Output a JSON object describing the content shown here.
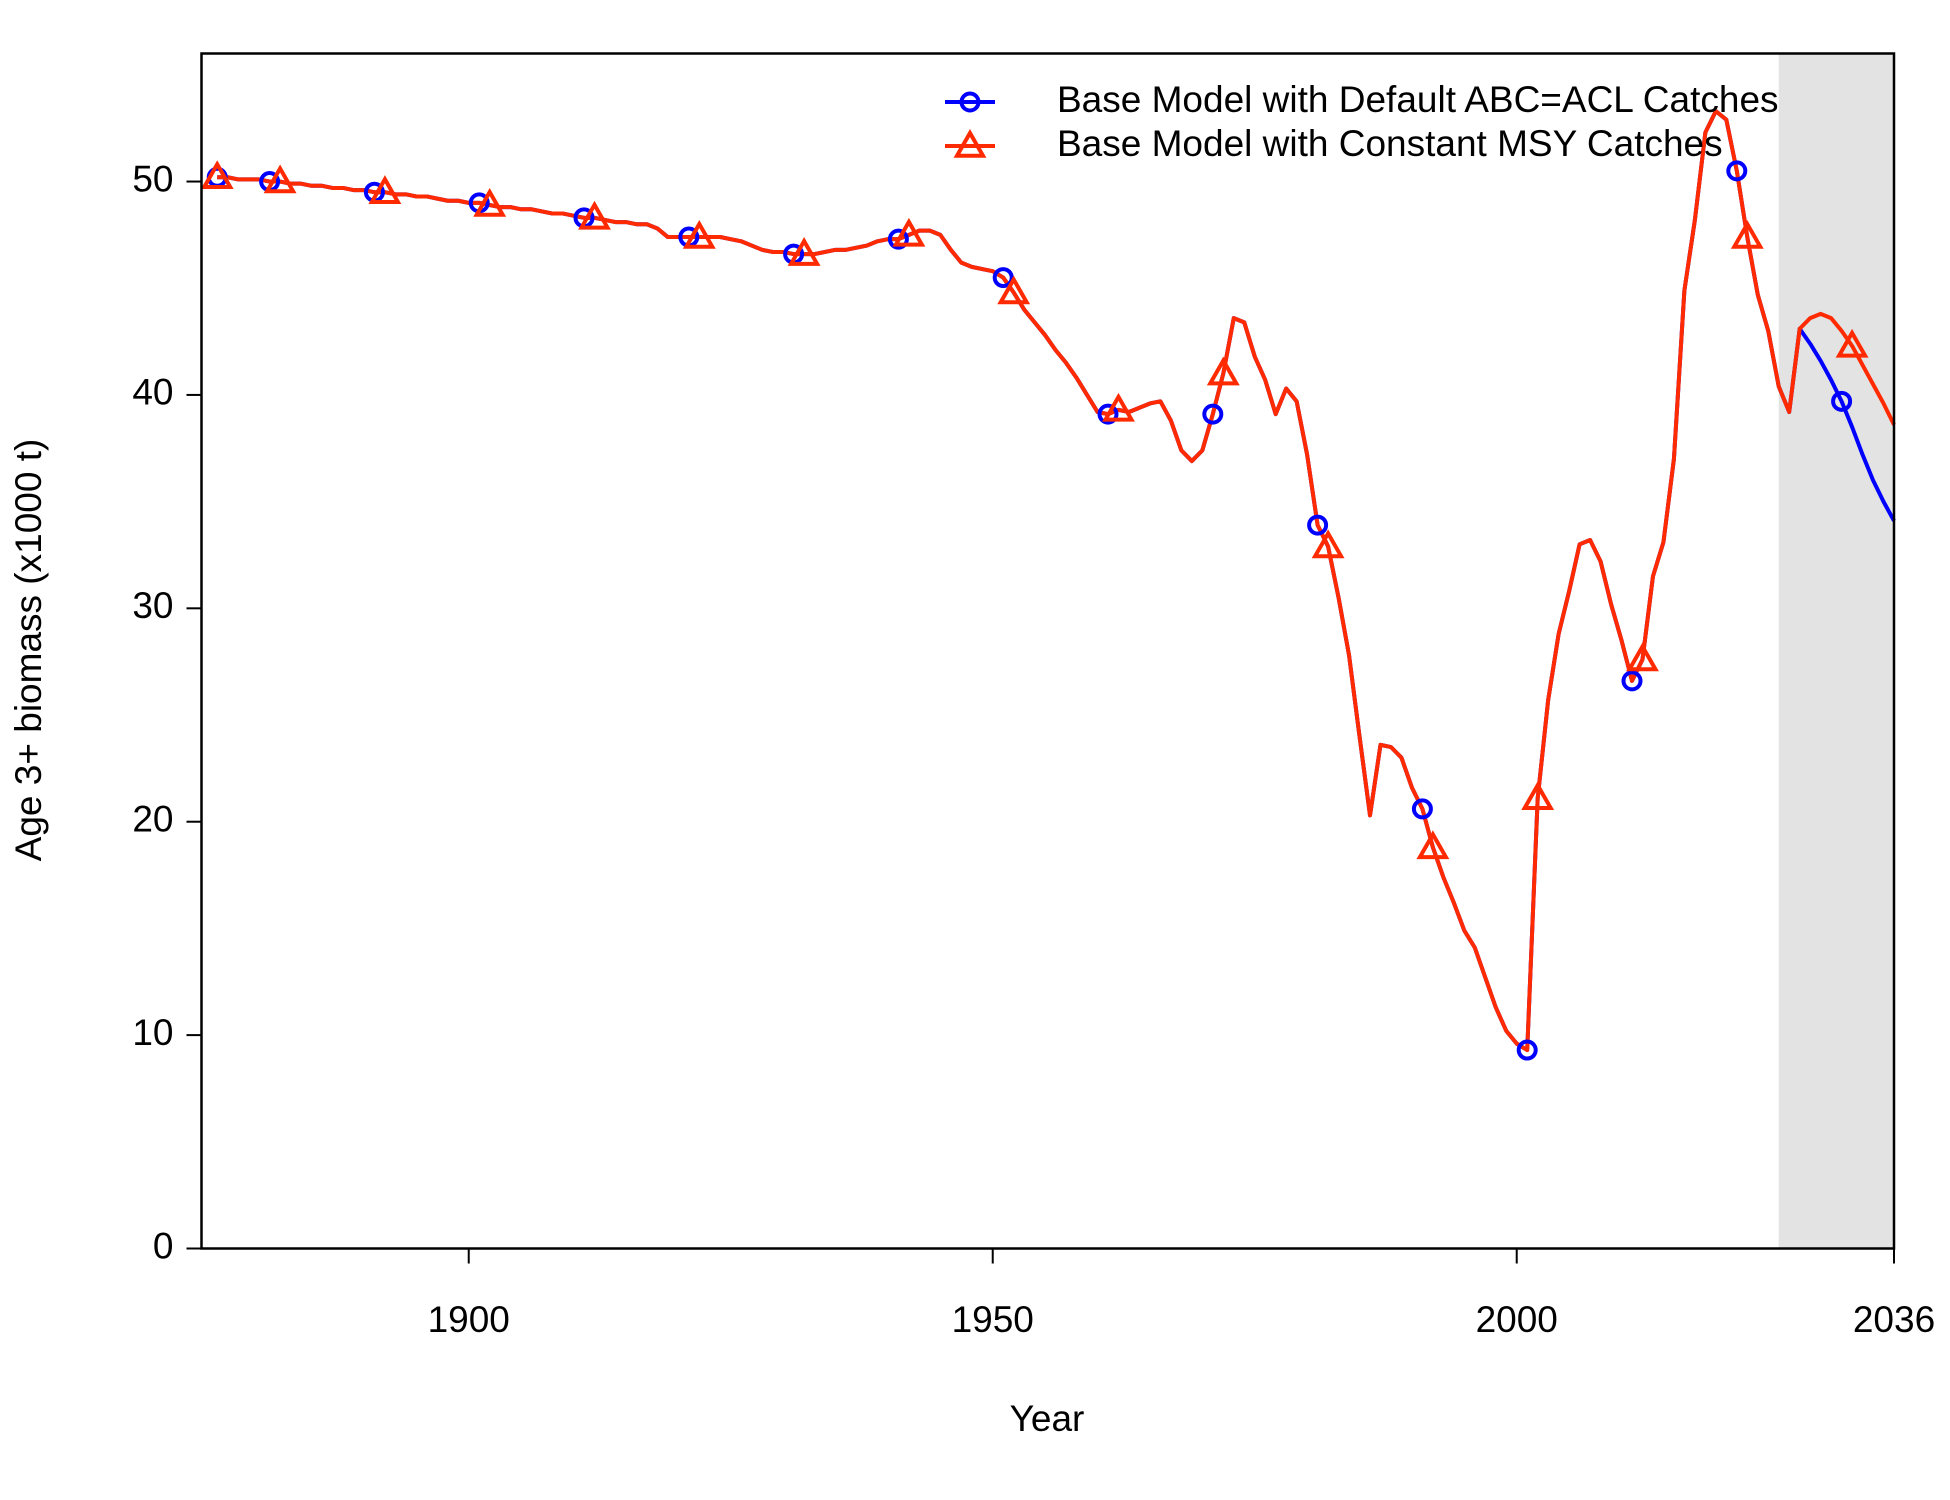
{
  "chart_data": {
    "type": "line",
    "xlabel": "Year",
    "ylabel": "Age 3+ biomass (x1000 t)",
    "x": [
      1876,
      1877,
      1878,
      1879,
      1880,
      1881,
      1882,
      1883,
      1884,
      1885,
      1886,
      1887,
      1888,
      1889,
      1890,
      1891,
      1892,
      1893,
      1894,
      1895,
      1896,
      1897,
      1898,
      1899,
      1900,
      1901,
      1902,
      1903,
      1904,
      1905,
      1906,
      1907,
      1908,
      1909,
      1910,
      1911,
      1912,
      1913,
      1914,
      1915,
      1916,
      1917,
      1918,
      1919,
      1920,
      1921,
      1922,
      1923,
      1924,
      1925,
      1926,
      1927,
      1928,
      1929,
      1930,
      1931,
      1932,
      1933,
      1934,
      1935,
      1936,
      1937,
      1938,
      1939,
      1940,
      1941,
      1942,
      1943,
      1944,
      1945,
      1946,
      1947,
      1948,
      1949,
      1950,
      1951,
      1952,
      1953,
      1954,
      1955,
      1956,
      1957,
      1958,
      1959,
      1960,
      1961,
      1962,
      1963,
      1964,
      1965,
      1966,
      1967,
      1968,
      1969,
      1970,
      1971,
      1972,
      1973,
      1974,
      1975,
      1976,
      1977,
      1978,
      1979,
      1980,
      1981,
      1982,
      1983,
      1984,
      1985,
      1986,
      1987,
      1988,
      1989,
      1990,
      1991,
      1992,
      1993,
      1994,
      1995,
      1996,
      1997,
      1998,
      1999,
      2000,
      2001,
      2002,
      2003,
      2004,
      2005,
      2006,
      2007,
      2008,
      2009,
      2010,
      2011,
      2012,
      2013,
      2014,
      2015,
      2016,
      2017,
      2018,
      2019,
      2020,
      2021,
      2022,
      2023,
      2024,
      2025,
      2026,
      2027,
      2028,
      2029,
      2030,
      2031,
      2032,
      2033,
      2034,
      2035,
      2036
    ],
    "series": [
      {
        "name": "Base Model with Default ABC=ACL Catches",
        "color": "#0000ff",
        "marker": "circle",
        "values": [
          50.2,
          50.2,
          50.1,
          50.1,
          50.1,
          50.0,
          50.0,
          49.9,
          49.9,
          49.8,
          49.8,
          49.7,
          49.7,
          49.6,
          49.6,
          49.5,
          49.5,
          49.4,
          49.4,
          49.3,
          49.3,
          49.2,
          49.1,
          49.1,
          49.0,
          49.0,
          48.9,
          48.8,
          48.8,
          48.7,
          48.7,
          48.6,
          48.5,
          48.5,
          48.4,
          48.3,
          48.3,
          48.2,
          48.1,
          48.1,
          48.0,
          48.0,
          47.8,
          47.4,
          47.4,
          47.4,
          47.4,
          47.4,
          47.4,
          47.3,
          47.2,
          47.0,
          46.8,
          46.7,
          46.7,
          46.6,
          46.6,
          46.6,
          46.7,
          46.8,
          46.8,
          46.9,
          47.0,
          47.2,
          47.3,
          47.3,
          47.5,
          47.7,
          47.7,
          47.5,
          46.8,
          46.2,
          46.0,
          45.9,
          45.8,
          45.5,
          44.8,
          44.0,
          43.4,
          42.8,
          42.1,
          41.5,
          40.8,
          40.0,
          39.2,
          39.1,
          39.3,
          39.2,
          39.4,
          39.6,
          39.7,
          38.8,
          37.4,
          36.9,
          37.4,
          39.1,
          41.0,
          43.6,
          43.4,
          41.8,
          40.7,
          39.1,
          40.3,
          39.7,
          37.2,
          33.9,
          32.9,
          30.5,
          27.8,
          24.0,
          20.3,
          23.6,
          23.5,
          23.0,
          21.6,
          20.6,
          18.8,
          17.4,
          16.2,
          14.9,
          14.1,
          12.7,
          11.3,
          10.2,
          9.6,
          9.3,
          21.1,
          25.7,
          28.8,
          30.8,
          33.0,
          33.2,
          32.2,
          30.2,
          28.5,
          26.6,
          27.6,
          31.5,
          33.1,
          37.0,
          44.9,
          48.2,
          52.3,
          53.3,
          52.9,
          50.5,
          47.4,
          44.7,
          43.0,
          40.4,
          39.2,
          43.1,
          42.4,
          41.6,
          40.7,
          39.7,
          38.5,
          37.2,
          36.0,
          35.0,
          34.1
        ]
      },
      {
        "name": "Base Model with Constant MSY Catches",
        "color": "#ff2a00",
        "marker": "triangle",
        "values": [
          50.2,
          50.2,
          50.1,
          50.1,
          50.1,
          50.0,
          50.0,
          49.9,
          49.9,
          49.8,
          49.8,
          49.7,
          49.7,
          49.6,
          49.6,
          49.5,
          49.5,
          49.4,
          49.4,
          49.3,
          49.3,
          49.2,
          49.1,
          49.1,
          49.0,
          49.0,
          48.9,
          48.8,
          48.8,
          48.7,
          48.7,
          48.6,
          48.5,
          48.5,
          48.4,
          48.3,
          48.3,
          48.2,
          48.1,
          48.1,
          48.0,
          48.0,
          47.8,
          47.4,
          47.4,
          47.4,
          47.4,
          47.4,
          47.4,
          47.3,
          47.2,
          47.0,
          46.8,
          46.7,
          46.7,
          46.6,
          46.6,
          46.6,
          46.7,
          46.8,
          46.8,
          46.9,
          47.0,
          47.2,
          47.3,
          47.3,
          47.5,
          47.7,
          47.7,
          47.5,
          46.8,
          46.2,
          46.0,
          45.9,
          45.8,
          45.5,
          44.8,
          44.0,
          43.4,
          42.8,
          42.1,
          41.5,
          40.8,
          40.0,
          39.2,
          39.1,
          39.3,
          39.2,
          39.4,
          39.6,
          39.7,
          38.8,
          37.4,
          36.9,
          37.4,
          39.1,
          41.0,
          43.6,
          43.4,
          41.8,
          40.7,
          39.1,
          40.3,
          39.7,
          37.2,
          33.9,
          32.9,
          30.5,
          27.8,
          24.0,
          20.3,
          23.6,
          23.5,
          23.0,
          21.6,
          20.6,
          18.8,
          17.4,
          16.2,
          14.9,
          14.1,
          12.7,
          11.3,
          10.2,
          9.6,
          9.3,
          21.1,
          25.7,
          28.8,
          30.8,
          33.0,
          33.2,
          32.2,
          30.2,
          28.5,
          26.6,
          27.6,
          31.5,
          33.1,
          37.0,
          44.9,
          48.2,
          52.3,
          53.3,
          52.9,
          50.5,
          47.4,
          44.7,
          43.0,
          40.4,
          39.2,
          43.1,
          43.6,
          43.8,
          43.6,
          43.0,
          42.3,
          41.4,
          40.5,
          39.6,
          38.6
        ]
      }
    ],
    "xlim": [
      1874.5,
      2036
    ],
    "xticks": [
      1900,
      1950,
      2000,
      2036
    ],
    "ylim": [
      0,
      56
    ],
    "yticks": [
      0,
      10,
      20,
      30,
      40,
      50
    ],
    "shaded_xrange": [
      2025,
      2036
    ],
    "shade_color": "#e3e3e3",
    "legend": "topright"
  }
}
